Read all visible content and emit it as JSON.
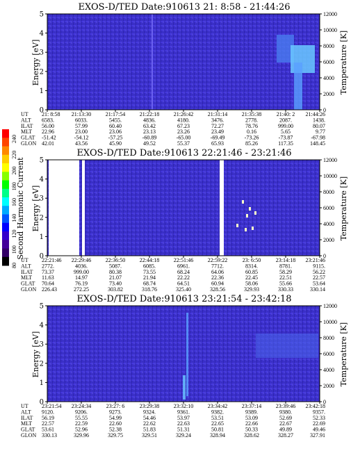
{
  "colorbar": {
    "label": "Second Harmonic Current",
    "ticks": [
      "240",
      "220",
      "200",
      "180",
      "160",
      "140",
      "120",
      "100",
      "80"
    ],
    "colors": [
      "#ff0000",
      "#ff4400",
      "#ff8800",
      "#ffcc00",
      "#ffff00",
      "#88ff00",
      "#00ff00",
      "#00ff88",
      "#00ffff",
      "#00aaff",
      "#0055ff",
      "#0000ff",
      "#3300cc",
      "#440099",
      "#330066",
      "#000000"
    ]
  },
  "chart_data": [
    {
      "type": "heatmap",
      "title": "EXOS-D/TED   Date:910613  21: 8:58 - 21:44:26",
      "ylabel": "Energy [eV]",
      "ylabel2": "Temperature [K]",
      "ylim": [
        0,
        5
      ],
      "ylim2": [
        0,
        12000
      ],
      "yticks": [
        "0",
        "1",
        "2",
        "3",
        "4",
        "5"
      ],
      "yticks2": [
        "0",
        "2000",
        "4000",
        "6000",
        "8000",
        "10000",
        "12000"
      ],
      "background": "#3a2fc8",
      "row_labels": [
        "UT",
        "ALT",
        "ILAT",
        "MLT",
        "GLAT",
        "GLON"
      ],
      "columns": [
        [
          "21: 8:58",
          "6583.",
          "56.00",
          "22.96",
          "-51.42",
          "42.01"
        ],
        [
          "21:13:30",
          "6033.",
          "57.99",
          "23.00",
          "-54.12",
          "43.56"
        ],
        [
          "21:17:54",
          "5455.",
          "60.40",
          "23.06",
          "-57.25",
          "45.90"
        ],
        [
          "21:22:18",
          "4836.",
          "63.42",
          "23.13",
          "-60.89",
          "49.52"
        ],
        [
          "21:26:42",
          "4180.",
          "67.23",
          "23.26",
          "-65.00",
          "55.37"
        ],
        [
          "21:31:14",
          "3476.",
          "72.27",
          "23.49",
          "-69.49",
          "65.93"
        ],
        [
          "21:35:38",
          "2778.",
          "78.76",
          "0.16",
          "-73.26",
          "85.26"
        ],
        [
          "21:40: 2",
          "2087.",
          "999.00",
          "5.65",
          "-73.87",
          "117.35"
        ],
        [
          "21:44:26",
          "1438.",
          "80.07",
          "9.77",
          "-67.98",
          "148.45"
        ]
      ]
    },
    {
      "type": "heatmap",
      "title": "EXOS-D/TED   Date:910613  22:21:46 - 23:21:46",
      "ylabel": "Energy [eV]",
      "ylabel2": "Temperature [K]",
      "ylim": [
        0,
        5
      ],
      "ylim2": [
        0,
        12000
      ],
      "yticks": [
        "0",
        "1",
        "2",
        "3",
        "4",
        "5"
      ],
      "yticks2": [
        "0",
        "2000",
        "4000",
        "6000",
        "8000",
        "10000",
        "12000"
      ],
      "background": "#3a2fc8",
      "row_labels": [
        "UT",
        "ALT",
        "ILAT",
        "MLT",
        "GLAT",
        "GLON"
      ],
      "columns": [
        [
          "22:21:46",
          "2772.",
          "73.37",
          "11.63",
          "70.64",
          "226.43"
        ],
        [
          "22:29:46",
          "4036.",
          "999.00",
          "14.97",
          "76.19",
          "272.25"
        ],
        [
          "22:36:50",
          "5087.",
          "80.38",
          "21.07",
          "73.40",
          "303.82"
        ],
        [
          "22:44:18",
          "6085.",
          "73.55",
          "21.94",
          "68.74",
          "318.76"
        ],
        [
          "22:51:46",
          "6961.",
          "68.24",
          "22.22",
          "64.51",
          "325.40"
        ],
        [
          "22:59:22",
          "7712.",
          "64.06",
          "22.36",
          "60.94",
          "328.56"
        ],
        [
          "23: 6:50",
          "8314.",
          "60.85",
          "22.45",
          "58.06",
          "329.93"
        ],
        [
          "23:14:18",
          "8781.",
          "58.29",
          "22.51",
          "55.66",
          "330.33"
        ],
        [
          "23:21:46",
          "9115.",
          "56.22",
          "22.57",
          "53.64",
          "330.14"
        ]
      ]
    },
    {
      "type": "heatmap",
      "title": "EXOS-D/TED   Date:910613  23:21:54 - 23:42:18",
      "ylabel": "Energy [eV]",
      "ylabel2": "Temperature [K]",
      "ylim": [
        0,
        5
      ],
      "ylim2": [
        0,
        12000
      ],
      "yticks": [
        "0",
        "1",
        "2",
        "3",
        "4",
        "5"
      ],
      "yticks2": [
        "0",
        "2000",
        "4000",
        "6000",
        "8000",
        "10000",
        "12000"
      ],
      "background": "#3a2fc8",
      "row_labels": [
        "UT",
        "ALT",
        "ILAT",
        "MLT",
        "GLAT",
        "GLON"
      ],
      "columns": [
        [
          "23:21:54",
          "9120.",
          "56.19",
          "22.57",
          "53.61",
          "330.13"
        ],
        [
          "23:24:34",
          "9206.",
          "55.55",
          "22.59",
          "52.96",
          "329.96"
        ],
        [
          "23:27: 6",
          "9273.",
          "54.99",
          "22.60",
          "52.38",
          "329.75"
        ],
        [
          "23:29:38",
          "9324.",
          "54.46",
          "22.62",
          "51.83",
          "329.51"
        ],
        [
          "23:32:10",
          "9361.",
          "53.97",
          "22.63",
          "51.31",
          "329.24"
        ],
        [
          "23:34:42",
          "9382.",
          "53.51",
          "22.65",
          "50.81",
          "328.94"
        ],
        [
          "23:37:14",
          "9389.",
          "53.09",
          "22.66",
          "50.33",
          "328.62"
        ],
        [
          "23:39:46",
          "9380.",
          "52.69",
          "22.67",
          "49.89",
          "328.27"
        ],
        [
          "23:42:18",
          "9357.",
          "52.33",
          "22.69",
          "49.46",
          "327.91"
        ]
      ]
    }
  ]
}
